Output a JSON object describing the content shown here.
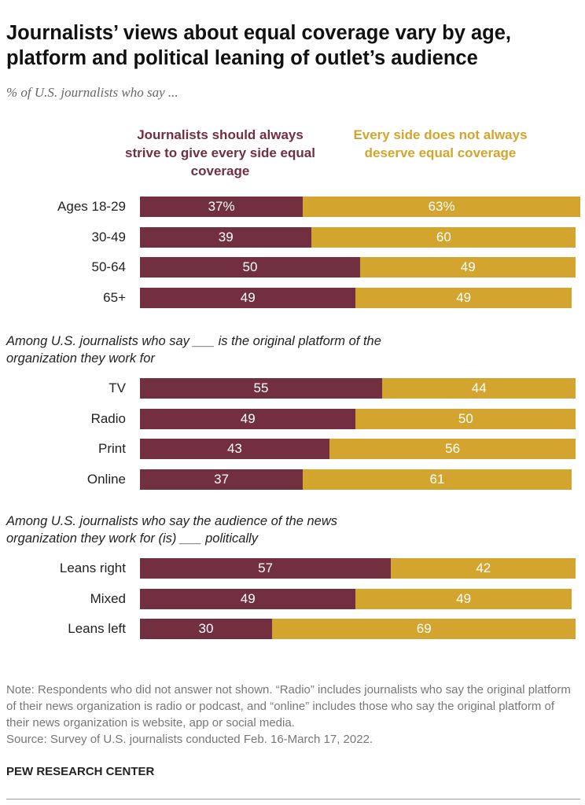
{
  "chart_data": {
    "type": "stacked-bar",
    "title": "Journalists’ views about equal coverage vary by age, platform and political leaning of outlet’s audience",
    "subtitle": "% of U.S. journalists who say ...",
    "xlim": [
      0,
      100
    ],
    "series": [
      {
        "name": "Journalists should always strive to give every side equal coverage",
        "color": "#722f40"
      },
      {
        "name": "Every side does not always deserve equal coverage",
        "color": "#d3a52e"
      }
    ],
    "groups": [
      {
        "categories": [
          "Ages 18-29",
          "30-49",
          "50-64",
          "65+"
        ],
        "values": [
          [
            37,
            39,
            50,
            49
          ],
          [
            63,
            60,
            49,
            49
          ]
        ],
        "value_labels": [
          [
            "37%",
            "39",
            "50",
            "49"
          ],
          [
            "63%",
            "60",
            "49",
            "49"
          ]
        ]
      },
      {
        "heading": "Among U.S. journalists who say ___ is the original platform of the organization they work for",
        "categories": [
          "TV",
          "Radio",
          "Print",
          "Online"
        ],
        "values": [
          [
            55,
            49,
            43,
            37
          ],
          [
            44,
            50,
            56,
            61
          ]
        ]
      },
      {
        "heading": "Among U.S. journalists who say the audience of the news organization they work for (is) ___ politically",
        "categories": [
          "Leans right",
          "Mixed",
          "Leans left"
        ],
        "values": [
          [
            57,
            49,
            30
          ],
          [
            42,
            49,
            69
          ]
        ]
      }
    ],
    "note": "Note: Respondents who did not answer not shown. “Radio” includes journalists who say the original platform of their news organization is radio or podcast, and “online” includes those who say the original platform of their news organization is website, app or social media.",
    "source": "Source: Survey of U.S. journalists conducted Feb. 16-March 17, 2022.",
    "credit": "PEW RESEARCH CENTER"
  }
}
